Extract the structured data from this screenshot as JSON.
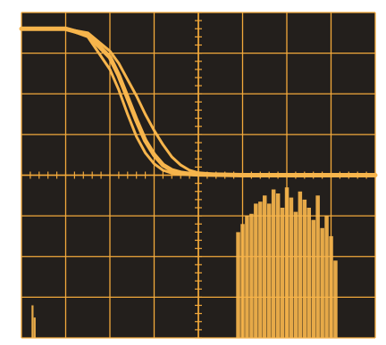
{
  "chart_data": {
    "type": "line",
    "title": "",
    "xlabel": "",
    "ylabel": "",
    "grid": true,
    "legend": "none",
    "grid_divisions": {
      "x": 8,
      "y": 8
    },
    "xlim": [
      0,
      8
    ],
    "ylim": [
      -4,
      4
    ],
    "series": [
      {
        "kind": "line",
        "x": [
          0,
          1,
          1.5,
          2,
          2.2,
          2.4,
          2.6,
          2.8,
          3.0,
          3.2,
          3.4,
          3.6,
          3.8,
          4.0,
          4.5,
          5,
          6,
          7,
          8
        ],
        "y": [
          3.6,
          3.6,
          3.45,
          2.9,
          2.45,
          1.9,
          1.35,
          0.85,
          0.5,
          0.25,
          0.12,
          0.06,
          0.03,
          0.02,
          0.01,
          0.0,
          0.0,
          0.0,
          0.0
        ]
      },
      {
        "kind": "line",
        "x": [
          0,
          1,
          1.5,
          2,
          2.2,
          2.4,
          2.6,
          2.8,
          3.0,
          3.2,
          3.4,
          3.6,
          3.8,
          4.0,
          4.5,
          5,
          6,
          7,
          8
        ],
        "y": [
          3.6,
          3.6,
          3.5,
          3.05,
          2.75,
          2.35,
          1.95,
          1.5,
          1.1,
          0.75,
          0.45,
          0.25,
          0.12,
          0.06,
          0.02,
          0.0,
          0.0,
          0.0,
          0.0
        ]
      },
      {
        "kind": "line",
        "x": [
          0,
          1,
          1.5,
          2,
          2.2,
          2.4,
          2.6,
          2.8,
          3.0,
          3.2,
          3.4,
          3.6,
          3.8,
          4.0,
          4.5,
          5,
          6,
          7,
          8
        ],
        "y": [
          3.6,
          3.6,
          3.4,
          2.6,
          2.1,
          1.5,
          0.95,
          0.55,
          0.28,
          0.12,
          0.05,
          0.02,
          0.01,
          0.0,
          0.0,
          0.0,
          0.0,
          0.0,
          0.0
        ]
      },
      {
        "kind": "bars",
        "x": [
          4.9,
          5.0,
          5.1,
          5.2,
          5.3,
          5.4,
          5.5,
          5.6,
          5.7,
          5.8,
          5.9,
          6.0,
          6.1,
          6.2,
          6.3,
          6.4,
          6.5,
          6.6,
          6.7,
          6.8,
          6.9,
          7.0,
          7.1
        ],
        "y": [
          -1.4,
          -1.2,
          -1.0,
          -0.95,
          -0.7,
          -0.65,
          -0.5,
          -0.7,
          -0.35,
          -0.45,
          -0.8,
          -0.3,
          -0.55,
          -0.9,
          -0.4,
          -0.6,
          -0.8,
          -1.1,
          -0.5,
          -1.3,
          -1.0,
          -1.5,
          -2.1
        ],
        "base": -4
      },
      {
        "kind": "bars",
        "x": [
          0.25,
          0.3
        ],
        "y": [
          -3.2,
          -3.5
        ],
        "base": -4
      }
    ]
  },
  "colors": {
    "background": "#231f1c",
    "grid": "#f2a93b",
    "trace": "#f7b54c"
  }
}
